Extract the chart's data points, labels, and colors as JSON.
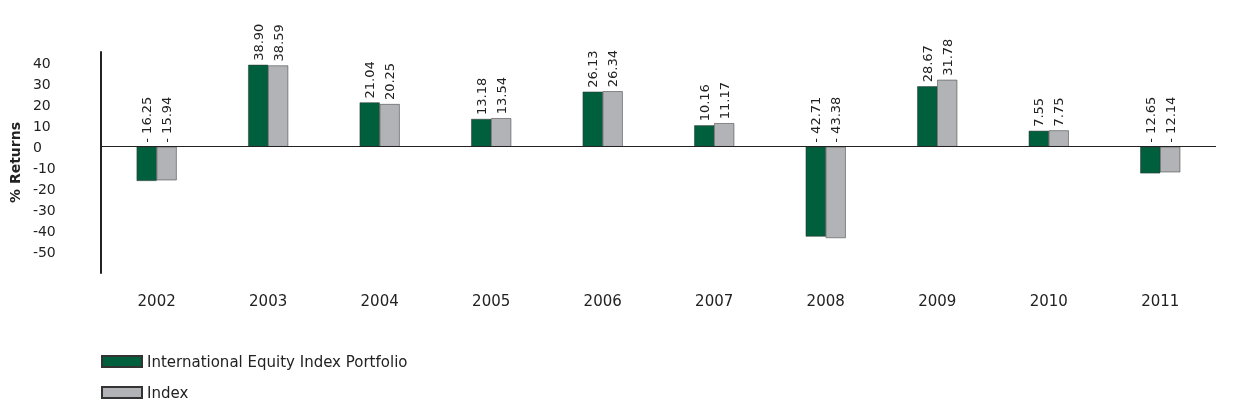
{
  "chart_data": {
    "type": "bar",
    "ylabel": "% Returns",
    "categories": [
      "2002",
      "2003",
      "2004",
      "2005",
      "2006",
      "2007",
      "2008",
      "2009",
      "2010",
      "2011"
    ],
    "series": [
      {
        "name": "International Equity Index Portfolio",
        "color": "#00603e",
        "values": [
          -16.25,
          38.9,
          21.04,
          13.18,
          26.13,
          10.16,
          -42.71,
          28.67,
          7.55,
          -12.65
        ],
        "value_labels": [
          "- 16.25",
          "38.90",
          "21.04",
          "13.18",
          "26.13",
          "10.16",
          "- 42.71",
          "28.67",
          "7.55",
          "- 12.65"
        ]
      },
      {
        "name": "Index",
        "color": "#b1b3b6",
        "values": [
          -15.94,
          38.59,
          20.25,
          13.54,
          26.34,
          11.17,
          -43.38,
          31.78,
          7.75,
          -12.14
        ],
        "value_labels": [
          "- 15.94",
          "38.59",
          "20.25",
          "13.54",
          "26.34",
          "11.17",
          "- 43.38",
          "31.78",
          "7.75",
          "- 12.14"
        ]
      }
    ],
    "ylim": [
      -60,
      45
    ],
    "yticks": [
      -50,
      -40,
      -30,
      -20,
      -10,
      0,
      10,
      20,
      30,
      40
    ],
    "ref_lines": [
      {
        "axis": "y",
        "value": 0,
        "label": null,
        "color": "#222222"
      }
    ],
    "legend": "bottom left"
  }
}
